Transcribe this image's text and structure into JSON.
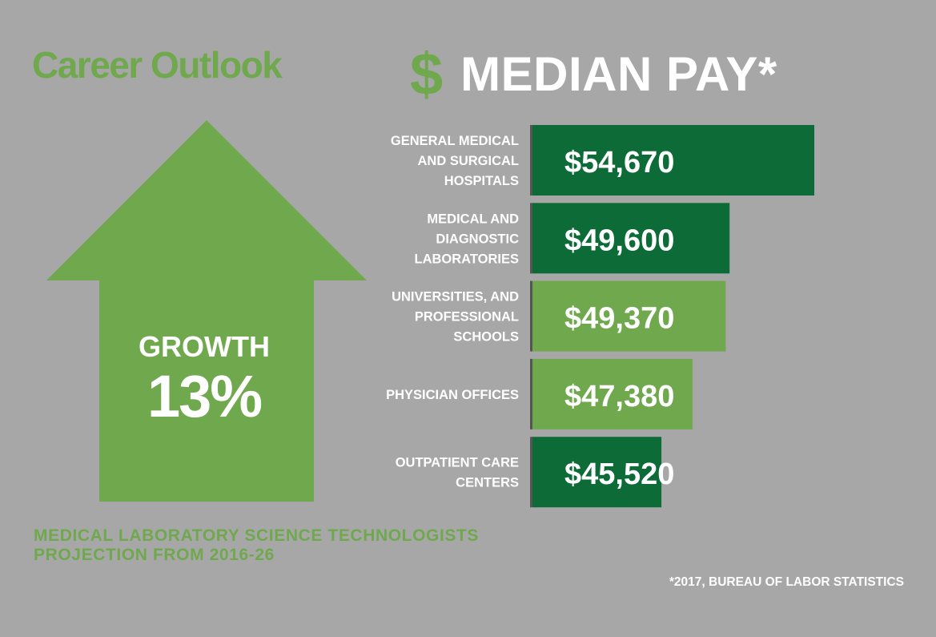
{
  "header": {
    "title": "Career Outlook",
    "pay_symbol": "$",
    "pay_title": "MEDIAN PAY*"
  },
  "growth": {
    "label": "GROWTH",
    "value": "13%"
  },
  "projection": {
    "line1": "MEDICAL LABORATORY SCIENCE TECHNOLOGISTS",
    "line2": "PROJECTION FROM 2016-26"
  },
  "source": "*2017, BUREAU OF LABOR STATISTICS",
  "colors": {
    "background": "#a7a7a7",
    "light_green": "#6fa84d",
    "dark_green": "#0d6b38",
    "white": "#ffffff"
  },
  "chart_data": {
    "type": "bar",
    "orientation": "horizontal",
    "categories": [
      [
        "GENERAL MEDICAL",
        "AND SURGICAL",
        "HOSPITALS"
      ],
      [
        "MEDICAL AND",
        "DIAGNOSTIC",
        "LABORATORIES"
      ],
      [
        "UNIVERSITIES, AND",
        "PROFESSIONAL",
        "SCHOOLS"
      ],
      [
        "PHYSICIAN OFFICES"
      ],
      [
        "OUTPATIENT CARE",
        "CENTERS"
      ]
    ],
    "values": [
      54670,
      49600,
      49370,
      47380,
      45520
    ],
    "value_labels": [
      "$54,670",
      "$49,600",
      "$49,370",
      "$47,380",
      "$45,520"
    ],
    "bar_colors": [
      "#0d6b38",
      "#0d6b38",
      "#6fa84d",
      "#6fa84d",
      "#0d6b38"
    ],
    "title": "MEDIAN PAY*",
    "grid": false
  }
}
